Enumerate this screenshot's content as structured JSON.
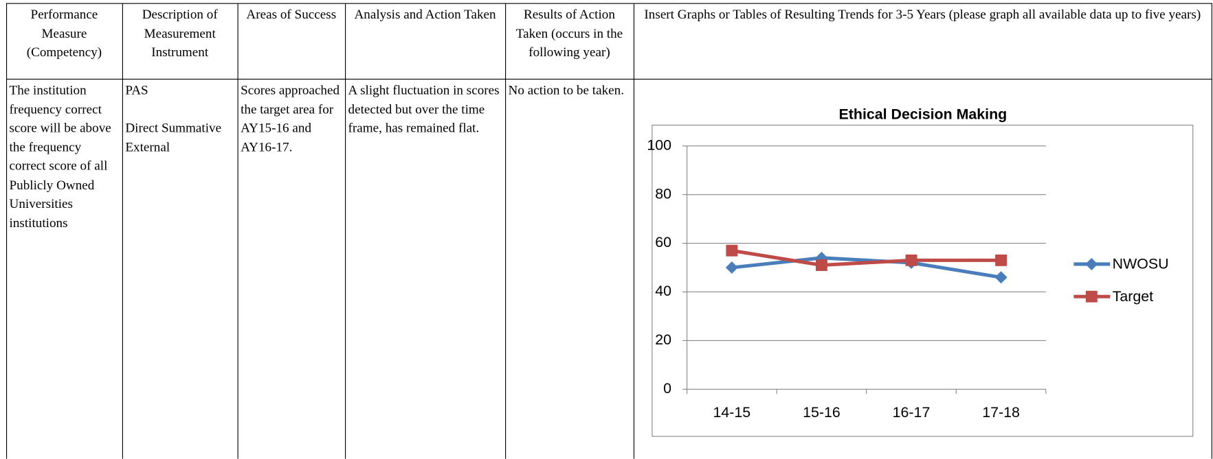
{
  "table": {
    "header": [
      "Performance Measure (Competency)",
      "Description of Measurement Instrument",
      "Areas of Success",
      "Analysis and Action Taken",
      "Results of Action Taken (occurs in the following year)",
      "Insert Graphs or Tables of Resulting Trends for 3-5 Years (please graph all available data up to five years)"
    ],
    "rows": [
      [
        [
          "The institution frequency correct score will be above the frequency correct score of all Publicly Owned Universities institutions"
        ],
        [
          "PAS",
          "Direct Summative External"
        ],
        [
          "Scores approached the target area for AY15-16 and AY16-17."
        ],
        [
          "A slight fluctuation in scores detected but over the time frame, has remained flat."
        ],
        [
          "No action to be taken."
        ]
      ]
    ]
  },
  "chart_data": {
    "type": "line",
    "title": "Ethical Decision Making",
    "categories": [
      "14-15",
      "15-16",
      "16-17",
      "17-18"
    ],
    "series": [
      {
        "name": "NWOSU",
        "color": "#4a7ebb",
        "marker": "diamond",
        "values": [
          50,
          54,
          52,
          46
        ]
      },
      {
        "name": "Target",
        "color": "#be4b48",
        "marker": "square",
        "values": [
          57,
          51,
          53,
          53
        ]
      }
    ],
    "ylim": [
      0,
      100
    ],
    "yticks": [
      0,
      20,
      40,
      60,
      80,
      100
    ],
    "grid": true,
    "legend": "right"
  }
}
